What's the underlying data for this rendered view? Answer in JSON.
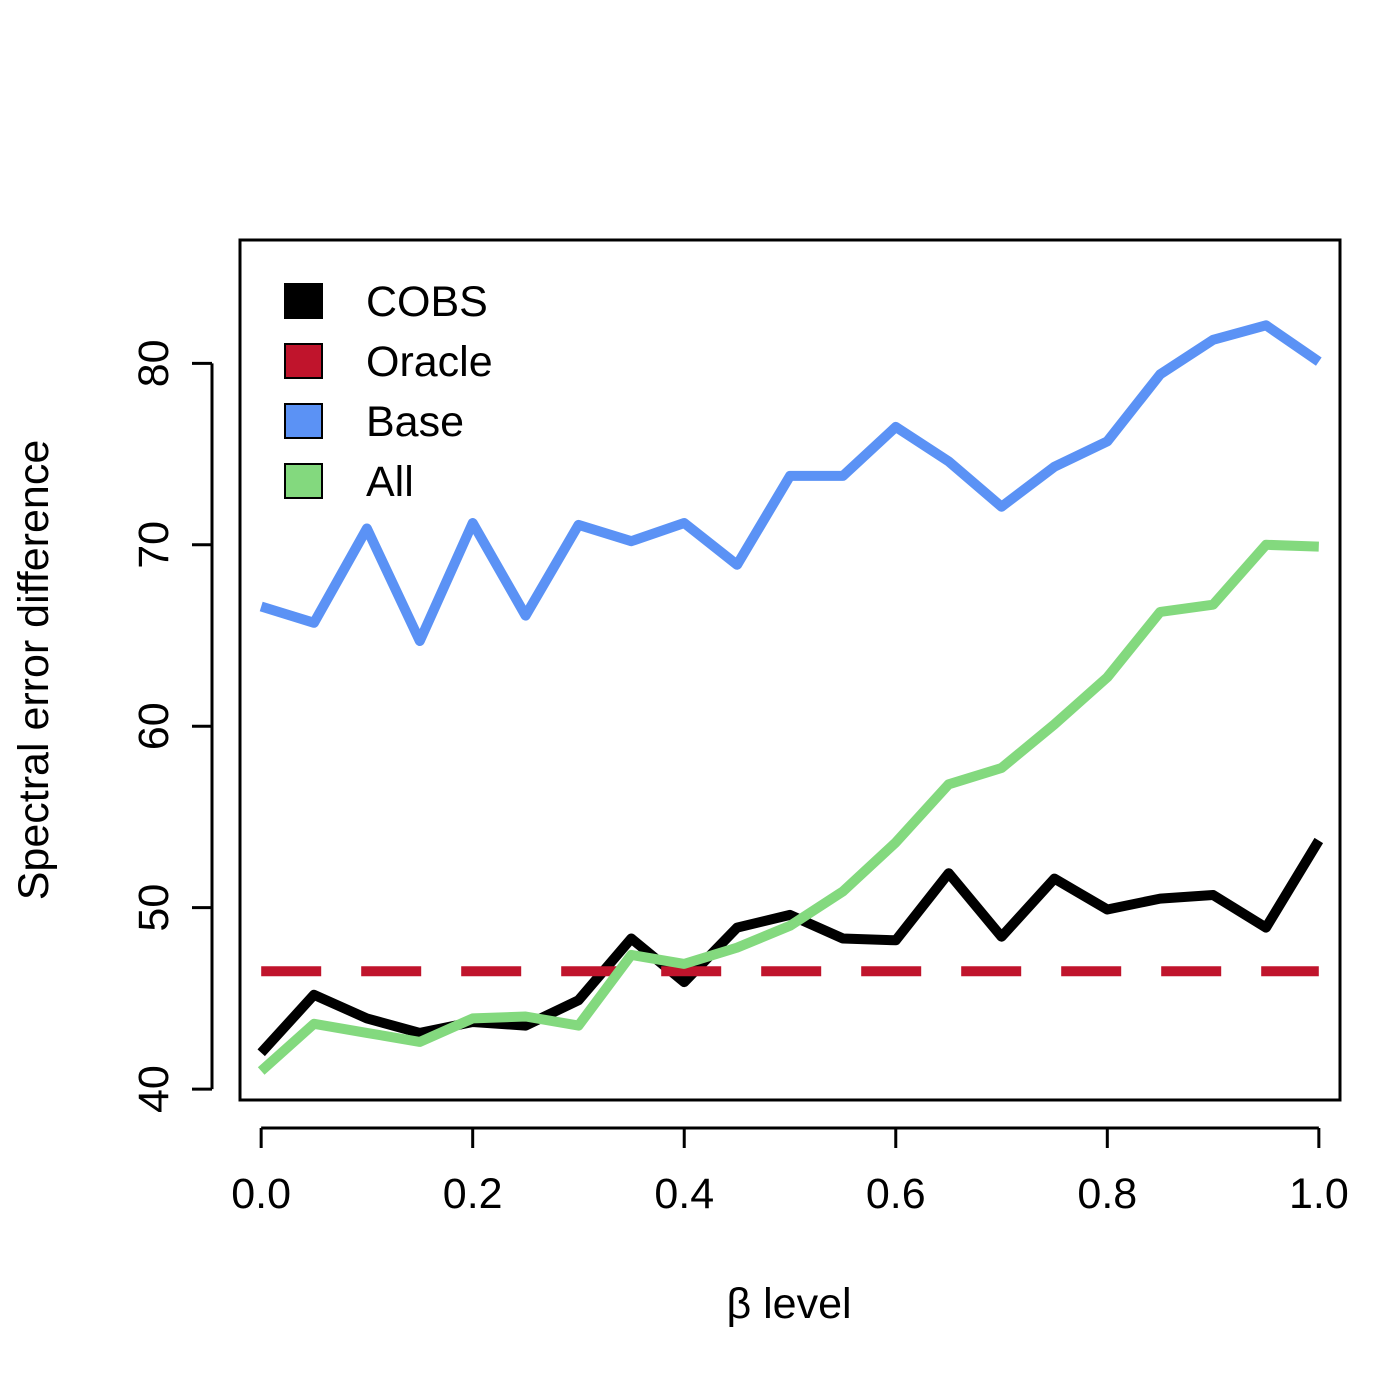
{
  "chart_data": {
    "type": "line",
    "title": "",
    "xlabel": "β level",
    "ylabel": "Spectral error difference",
    "x": [
      0.0,
      0.05,
      0.1,
      0.15,
      0.2,
      0.25,
      0.3,
      0.35,
      0.4,
      0.45,
      0.5,
      0.55,
      0.6,
      0.65,
      0.7,
      0.75,
      0.8,
      0.85,
      0.9,
      0.95,
      1.0
    ],
    "xlim": [
      -0.02,
      1.02
    ],
    "ylim": [
      39.4,
      86.8
    ],
    "xticks": [
      {
        "value": 0.0,
        "label": "0.0"
      },
      {
        "value": 0.2,
        "label": "0.2"
      },
      {
        "value": 0.4,
        "label": "0.4"
      },
      {
        "value": 0.6,
        "label": "0.6"
      },
      {
        "value": 0.8,
        "label": "0.8"
      },
      {
        "value": 1.0,
        "label": "1.0"
      }
    ],
    "yticks": [
      {
        "value": 40,
        "label": "40"
      },
      {
        "value": 50,
        "label": "50"
      },
      {
        "value": 60,
        "label": "60"
      },
      {
        "value": 70,
        "label": "70"
      },
      {
        "value": 80,
        "label": "80"
      }
    ],
    "grid": false,
    "legend_position": "top-left",
    "series": [
      {
        "name": "COBS",
        "color": "#000000",
        "style": "solid",
        "values": [
          42.0,
          45.2,
          43.9,
          43.1,
          43.7,
          43.5,
          44.9,
          48.3,
          45.9,
          48.9,
          49.6,
          48.3,
          48.2,
          51.9,
          48.4,
          51.6,
          49.9,
          50.5,
          50.7,
          48.9,
          53.7
        ]
      },
      {
        "name": "Oracle",
        "color": "#c0142c",
        "style": "dashed",
        "values": [
          46.5,
          46.5,
          46.5,
          46.5,
          46.5,
          46.5,
          46.5,
          46.5,
          46.5,
          46.5,
          46.5,
          46.5,
          46.5,
          46.5,
          46.5,
          46.5,
          46.5,
          46.5,
          46.5,
          46.5,
          46.5
        ]
      },
      {
        "name": "Base",
        "color": "#5b92f5",
        "style": "solid",
        "values": [
          66.6,
          65.7,
          70.9,
          64.7,
          71.2,
          66.1,
          71.1,
          70.2,
          71.2,
          68.9,
          73.8,
          73.8,
          76.5,
          74.6,
          72.1,
          74.3,
          75.7,
          79.4,
          81.3,
          82.1,
          80.1
        ]
      },
      {
        "name": "All",
        "color": "#83d97e",
        "style": "solid",
        "values": [
          41.0,
          43.6,
          43.1,
          42.6,
          43.9,
          44.0,
          43.5,
          47.4,
          46.9,
          47.8,
          49.0,
          50.9,
          53.6,
          56.8,
          57.7,
          60.1,
          62.7,
          66.3,
          66.7,
          70.0,
          69.9
        ]
      }
    ]
  }
}
